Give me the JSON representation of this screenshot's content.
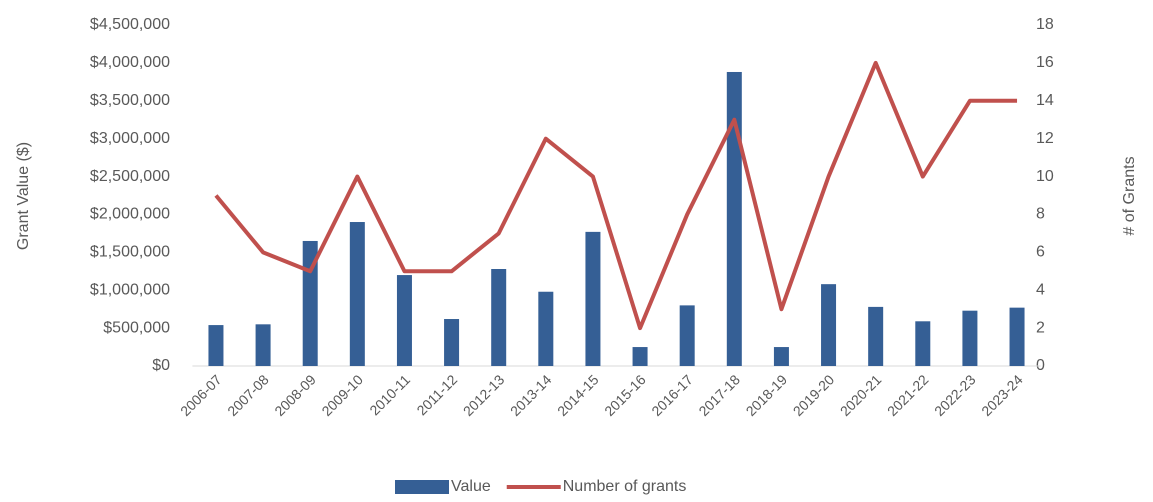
{
  "chart_data": {
    "type": "combo",
    "y_label": "Grant Value ($)",
    "y2_label": "# of Grants",
    "categories": [
      "2006-07",
      "2007-08",
      "2008-09",
      "2009-10",
      "2010-11",
      "2011-12",
      "2012-13",
      "2013-14",
      "2014-15",
      "2015-16",
      "2016-17",
      "2017-18",
      "2018-19",
      "2019-20",
      "2020-21",
      "2021-22",
      "2022-23",
      "2023-24"
    ],
    "series": [
      {
        "name": "Value",
        "type": "bar",
        "color": "#355f95",
        "axis": "y",
        "values": [
          540000,
          550000,
          1650000,
          1900000,
          1200000,
          620000,
          1280000,
          980000,
          1770000,
          250000,
          800000,
          3880000,
          250000,
          1080000,
          780000,
          590000,
          730000,
          770000
        ]
      },
      {
        "name": "Number of grants",
        "type": "line",
        "color": "#c0504d",
        "axis": "y2",
        "values": [
          9,
          6,
          5,
          10,
          5,
          5,
          7,
          12,
          10,
          2,
          8,
          13,
          3,
          10,
          16,
          10,
          14,
          14
        ]
      }
    ],
    "ylim": [
      0,
      4500000
    ],
    "yticks": [
      {
        "value": 0,
        "label": "$0"
      },
      {
        "value": 500000,
        "label": "$500,000"
      },
      {
        "value": 1000000,
        "label": "$1,000,000"
      },
      {
        "value": 1500000,
        "label": "$1,500,000"
      },
      {
        "value": 2000000,
        "label": "$2,000,000"
      },
      {
        "value": 2500000,
        "label": "$2,500,000"
      },
      {
        "value": 3000000,
        "label": "$3,000,000"
      },
      {
        "value": 3500000,
        "label": "$3,500,000"
      },
      {
        "value": 4000000,
        "label": "$4,000,000"
      },
      {
        "value": 4500000,
        "label": "$4,500,000"
      }
    ],
    "y2lim": [
      0,
      18
    ],
    "y2ticks": [
      0,
      2,
      4,
      6,
      8,
      10,
      12,
      14,
      16,
      18
    ],
    "grid": false,
    "legend": "bottom"
  }
}
